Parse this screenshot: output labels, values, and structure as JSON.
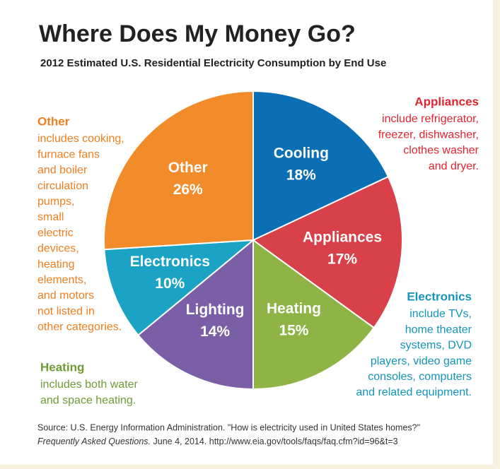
{
  "chart_data": {
    "type": "pie",
    "title": "Where Does My Money Go?",
    "subtitle": "2012 Estimated U.S. Residential Electricity Consumption by End Use",
    "categories": [
      "Cooling",
      "Appliances",
      "Heating",
      "Lighting",
      "Electronics",
      "Other"
    ],
    "values": [
      18,
      17,
      15,
      14,
      10,
      26
    ],
    "value_labels": [
      "18%",
      "17%",
      "15%",
      "14%",
      "10%",
      "26%"
    ],
    "colors": [
      "#0b6fb6",
      "#d8404a",
      "#8db444",
      "#7a5ea6",
      "#1aa3c5",
      "#f28c2b"
    ],
    "annotations": [
      {
        "title": "Appliances",
        "color": "#e0252f",
        "lines": [
          "include refrigerator,",
          "freezer, dishwasher,",
          "clothes washer",
          "and dryer."
        ]
      },
      {
        "title": "Electronics",
        "color": "#1296b8",
        "lines": [
          "include TVs,",
          "home theater",
          "systems, DVD",
          "players, video game",
          "consoles, computers",
          "and related equipment."
        ]
      },
      {
        "title": "Heating",
        "color": "#6e9b34",
        "lines": [
          "includes both water",
          "and space heating."
        ]
      },
      {
        "title": "Other",
        "color": "#f07f1e",
        "lines": [
          "includes cooking,",
          "furnace fans",
          "and boiler",
          "circulation",
          "pumps,",
          "small",
          "electric",
          "devices,",
          "heating",
          "elements,",
          "and motors",
          "not listed in",
          "other categories."
        ]
      }
    ],
    "source": {
      "line1": "Source: U.S. Energy Information Administration. \"How is electricity used in United States homes?\"",
      "italic": "Frequently Asked Questions.",
      "rest": " June 4, 2014. http://www.eia.gov/tools/faqs/faq.cfm?id=96&t=3"
    }
  }
}
